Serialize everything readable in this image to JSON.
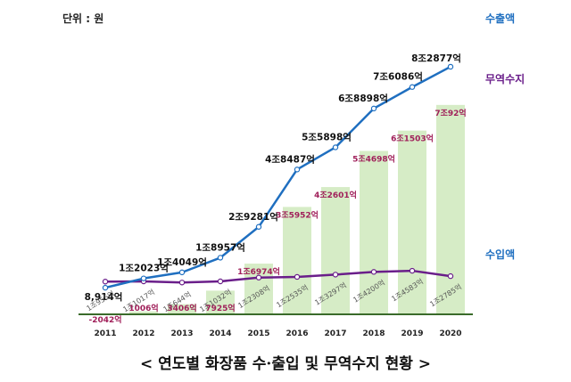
{
  "unit_label": "단위 : 원",
  "caption": "< 연도별 화장품 수·출입 및 무역수지 현황 >",
  "legend": {
    "export": "수출액",
    "balance": "무역수지",
    "import": "수입액"
  },
  "colors": {
    "export": "#1f6fc0",
    "import": "#6a1e8a",
    "bar": "#d6ecc6",
    "bar_label": "#a0205a",
    "axis": "#3a6b2a"
  },
  "chart_data": {
    "type": "bar+line",
    "title": "",
    "categories": [
      "2011",
      "2012",
      "2013",
      "2014",
      "2015",
      "2016",
      "2017",
      "2018",
      "2019",
      "2020"
    ],
    "ylim": [
      -2500,
      90000
    ],
    "unit": "억원",
    "series": [
      {
        "name": "수출액",
        "type": "line",
        "values": [
          8914,
          12023,
          14049,
          18957,
          29281,
          48487,
          55898,
          68898,
          76086,
          82877
        ],
        "labels": [
          "8,914억",
          "1조2023억",
          "1조4049억",
          "1조8957억",
          "2조9281억",
          "4조8487억",
          "5조5898억",
          "6조8898억",
          "7조6086억",
          "8조2877억"
        ]
      },
      {
        "name": "수입액",
        "type": "line",
        "values": [
          10955,
          11017,
          10644,
          11032,
          12308,
          12535,
          13297,
          14200,
          14583,
          12785
        ],
        "labels": [
          "1조955억",
          "1조1017억",
          "1조644억",
          "1조1032억",
          "1조2308억",
          "1조2535억",
          "1조3297억",
          "1조4200억",
          "1조4583억",
          "1조2785억"
        ]
      },
      {
        "name": "무역수지",
        "type": "bar",
        "values": [
          -2042,
          1006,
          3406,
          7925,
          16974,
          35952,
          42601,
          54698,
          61503,
          70092
        ],
        "labels": [
          "-2042억",
          "1006억",
          "3406억",
          "7925억",
          "1조6974억",
          "3조5952억",
          "4조2601억",
          "5조4698억",
          "6조1503억",
          "7조92억"
        ]
      }
    ]
  }
}
